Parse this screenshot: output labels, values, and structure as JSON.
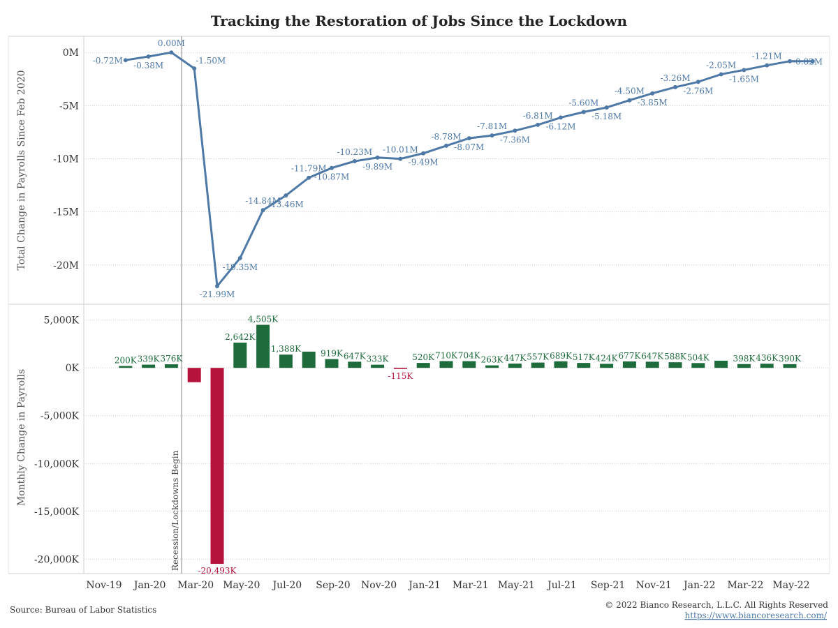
{
  "title": "Tracking the Restoration of Jobs Since the Lockdown",
  "source": "Source: Bureau of Labor Statistics",
  "copyright": "© 2022 Bianco Research, L.L.C. All Rights Reserved",
  "url": "https://www.biancoresearch.com/",
  "recession_label": "Recession/Lockdowns Begin",
  "colors": {
    "line": "#4e79a7",
    "positive": "#1e6b3c",
    "negative": "#b5133b",
    "grid": "#cccccc"
  },
  "x_ticks": [
    "Nov-19",
    "Jan-20",
    "Mar-20",
    "May-20",
    "Jul-20",
    "Sep-20",
    "Nov-20",
    "Jan-21",
    "Mar-21",
    "May-21",
    "Jul-21",
    "Sep-21",
    "Nov-21",
    "Jan-22",
    "Mar-22",
    "May-22"
  ],
  "chart_data": [
    {
      "type": "line",
      "ylabel": "Total Change in Payrolls Since Feb 2020",
      "yticks": [
        "0M",
        "-5M",
        "-10M",
        "-15M",
        "-20M"
      ],
      "ylim": [
        -23.3,
        1.0
      ],
      "x": [
        "Dec-19",
        "Jan-20",
        "Feb-20",
        "Mar-20",
        "Apr-20",
        "May-20",
        "Jun-20",
        "Jul-20",
        "Aug-20",
        "Sep-20",
        "Oct-20",
        "Nov-20",
        "Dec-20",
        "Jan-21",
        "Feb-21",
        "Mar-21",
        "Apr-21",
        "May-21",
        "Jun-21",
        "Jul-21",
        "Aug-21",
        "Sep-21",
        "Oct-21",
        "Nov-21",
        "Dec-21",
        "Jan-22",
        "Feb-22",
        "Mar-22",
        "Apr-22",
        "May-22",
        "Jun-22"
      ],
      "values": [
        -0.72,
        -0.38,
        0.0,
        -1.5,
        -21.99,
        -19.35,
        -14.84,
        -13.46,
        -11.79,
        -10.87,
        -10.23,
        -9.89,
        -10.01,
        -9.49,
        -8.78,
        -8.07,
        -7.81,
        -7.36,
        -6.81,
        -6.12,
        -5.6,
        -5.18,
        -4.5,
        -3.85,
        -3.26,
        -2.76,
        -2.05,
        -1.65,
        -1.21,
        -0.82,
        -0.82
      ],
      "labels": [
        "-0.72M",
        "-0.38M",
        "0.00M",
        "-1.50M",
        "-21.99M",
        "-19.35M",
        "-14.84M",
        "-13.46M",
        "-11.79M",
        "-10.87M",
        "-10.23M",
        "-9.89M",
        "-10.01M",
        "-9.49M",
        "-8.78M",
        "-8.07M",
        "-7.81M",
        "-7.36M",
        "-6.81M",
        "-6.12M",
        "-5.60M",
        "-5.18M",
        "-4.50M",
        "-3.85M",
        "-3.26M",
        "-2.76M",
        "-2.05M",
        "-1.65M",
        "-1.21M",
        "-0.82M",
        ""
      ]
    },
    {
      "type": "bar",
      "ylabel": "Monthly Change in Payrolls",
      "yticks": [
        "5,000K",
        "0K",
        "-5,000K",
        "-10,000K",
        "-15,000K",
        "-20,000K"
      ],
      "ylim": [
        -21000,
        6000
      ],
      "x": [
        "Dec-19",
        "Jan-20",
        "Feb-20",
        "Mar-20",
        "Apr-20",
        "May-20",
        "Jun-20",
        "Jul-20",
        "Aug-20",
        "Sep-20",
        "Oct-20",
        "Nov-20",
        "Dec-20",
        "Jan-21",
        "Feb-21",
        "Mar-21",
        "Apr-21",
        "May-21",
        "Jun-21",
        "Jul-21",
        "Aug-21",
        "Sep-21",
        "Oct-21",
        "Nov-21",
        "Dec-21",
        "Jan-22",
        "Feb-22",
        "Mar-22",
        "Apr-22",
        "May-22"
      ],
      "values": [
        200,
        339,
        376,
        -1500,
        -20493,
        2642,
        4505,
        1388,
        1700,
        919,
        647,
        333,
        -115,
        520,
        710,
        704,
        263,
        447,
        557,
        689,
        517,
        424,
        677,
        647,
        588,
        504,
        750,
        398,
        436,
        390
      ],
      "labels": [
        "200K",
        "339K",
        "376K",
        "",
        "-20,493K",
        "2,642K",
        "4,505K",
        "1,388K",
        "",
        "919K",
        "647K",
        "333K",
        "-115K",
        "520K",
        "710K",
        "704K",
        "263K",
        "447K",
        "557K",
        "689K",
        "517K",
        "424K",
        "677K",
        "647K",
        "588K",
        "504K",
        "",
        "398K",
        "436K",
        "390K"
      ]
    }
  ]
}
